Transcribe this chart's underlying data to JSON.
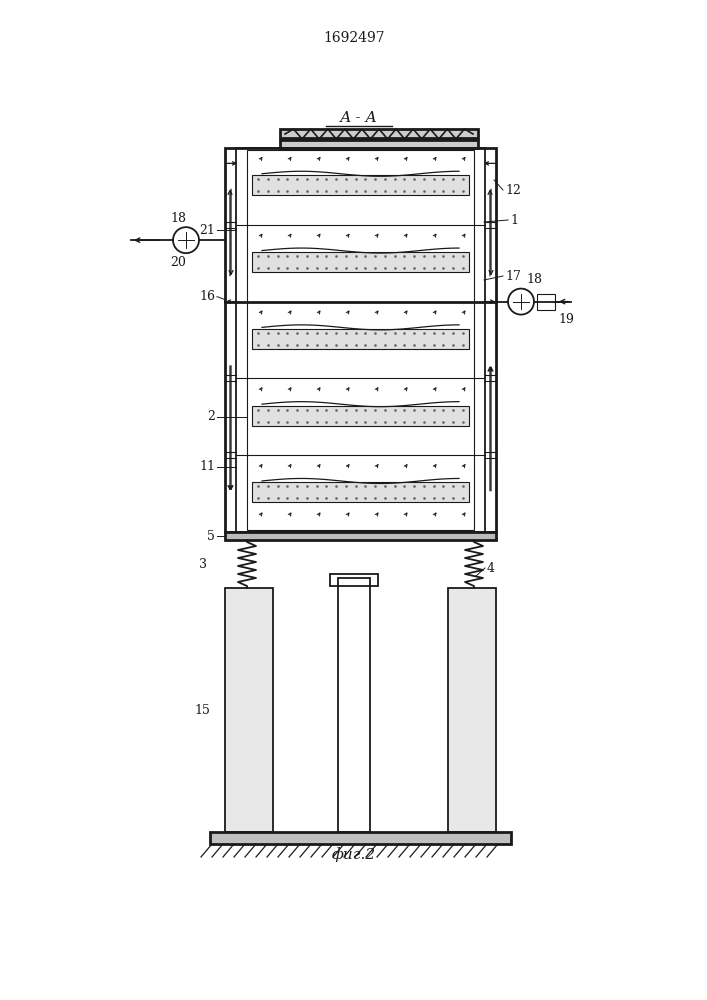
{
  "title": "1692497",
  "fig_label": "фиг.2",
  "section_label": "А - А",
  "bg_color": "#ffffff",
  "line_color": "#1a1a1a",
  "fig_width": 7.07,
  "fig_height": 10.0,
  "dpi": 100
}
